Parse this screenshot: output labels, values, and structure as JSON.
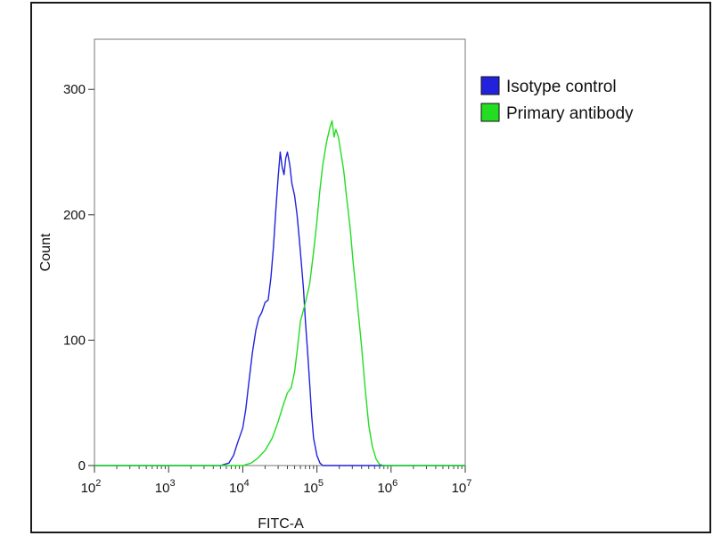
{
  "chart_data": {
    "type": "line",
    "xlabel": "FITC-A",
    "ylabel": "Count",
    "x_scale": "log",
    "xlim": [
      100,
      10000000
    ],
    "ylim": [
      0,
      340
    ],
    "grid": false,
    "legend_position": "right",
    "x_ticks": [
      {
        "value": 100,
        "base": "10",
        "exp": "2"
      },
      {
        "value": 1000,
        "base": "10",
        "exp": "3"
      },
      {
        "value": 10000,
        "base": "10",
        "exp": "4"
      },
      {
        "value": 100000,
        "base": "10",
        "exp": "5"
      },
      {
        "value": 1000000,
        "base": "10",
        "exp": "6"
      },
      {
        "value": 10000000,
        "base": "10",
        "exp": "7"
      }
    ],
    "y_ticks": [
      {
        "value": 0,
        "label": "0"
      },
      {
        "value": 100,
        "label": "100"
      },
      {
        "value": 200,
        "label": "200"
      },
      {
        "value": 300,
        "label": "300"
      }
    ],
    "series": [
      {
        "name": "Isotype control",
        "color": "#2222dd",
        "points": [
          [
            100,
            0
          ],
          [
            2000,
            0
          ],
          [
            5000,
            0
          ],
          [
            6500,
            2
          ],
          [
            7500,
            8
          ],
          [
            8500,
            18
          ],
          [
            10000,
            30
          ],
          [
            11000,
            45
          ],
          [
            12000,
            65
          ],
          [
            13500,
            90
          ],
          [
            15000,
            108
          ],
          [
            16500,
            118
          ],
          [
            18000,
            122
          ],
          [
            20000,
            130
          ],
          [
            22000,
            132
          ],
          [
            24000,
            150
          ],
          [
            26000,
            175
          ],
          [
            28000,
            205
          ],
          [
            30000,
            230
          ],
          [
            32000,
            250
          ],
          [
            34000,
            238
          ],
          [
            36000,
            232
          ],
          [
            38000,
            245
          ],
          [
            40000,
            250
          ],
          [
            43000,
            240
          ],
          [
            46000,
            225
          ],
          [
            50000,
            215
          ],
          [
            54000,
            200
          ],
          [
            58000,
            180
          ],
          [
            62000,
            160
          ],
          [
            66000,
            140
          ],
          [
            70000,
            115
          ],
          [
            75000,
            90
          ],
          [
            80000,
            65
          ],
          [
            85000,
            40
          ],
          [
            90000,
            22
          ],
          [
            100000,
            8
          ],
          [
            110000,
            2
          ],
          [
            120000,
            0
          ],
          [
            10000000,
            0
          ]
        ]
      },
      {
        "name": "Primary antibody",
        "color": "#22dd22",
        "points": [
          [
            100,
            0
          ],
          [
            10000,
            0
          ],
          [
            13000,
            2
          ],
          [
            16000,
            6
          ],
          [
            20000,
            12
          ],
          [
            25000,
            22
          ],
          [
            30000,
            35
          ],
          [
            35000,
            48
          ],
          [
            40000,
            58
          ],
          [
            45000,
            62
          ],
          [
            50000,
            75
          ],
          [
            55000,
            95
          ],
          [
            60000,
            115
          ],
          [
            70000,
            130
          ],
          [
            80000,
            145
          ],
          [
            90000,
            170
          ],
          [
            100000,
            195
          ],
          [
            110000,
            220
          ],
          [
            120000,
            240
          ],
          [
            135000,
            258
          ],
          [
            150000,
            270
          ],
          [
            160000,
            275
          ],
          [
            170000,
            262
          ],
          [
            180000,
            268
          ],
          [
            195000,
            262
          ],
          [
            210000,
            250
          ],
          [
            230000,
            235
          ],
          [
            250000,
            215
          ],
          [
            280000,
            190
          ],
          [
            310000,
            160
          ],
          [
            350000,
            130
          ],
          [
            400000,
            95
          ],
          [
            450000,
            60
          ],
          [
            500000,
            32
          ],
          [
            560000,
            15
          ],
          [
            630000,
            5
          ],
          [
            700000,
            1
          ],
          [
            800000,
            0
          ],
          [
            10000000,
            0
          ]
        ]
      }
    ]
  }
}
